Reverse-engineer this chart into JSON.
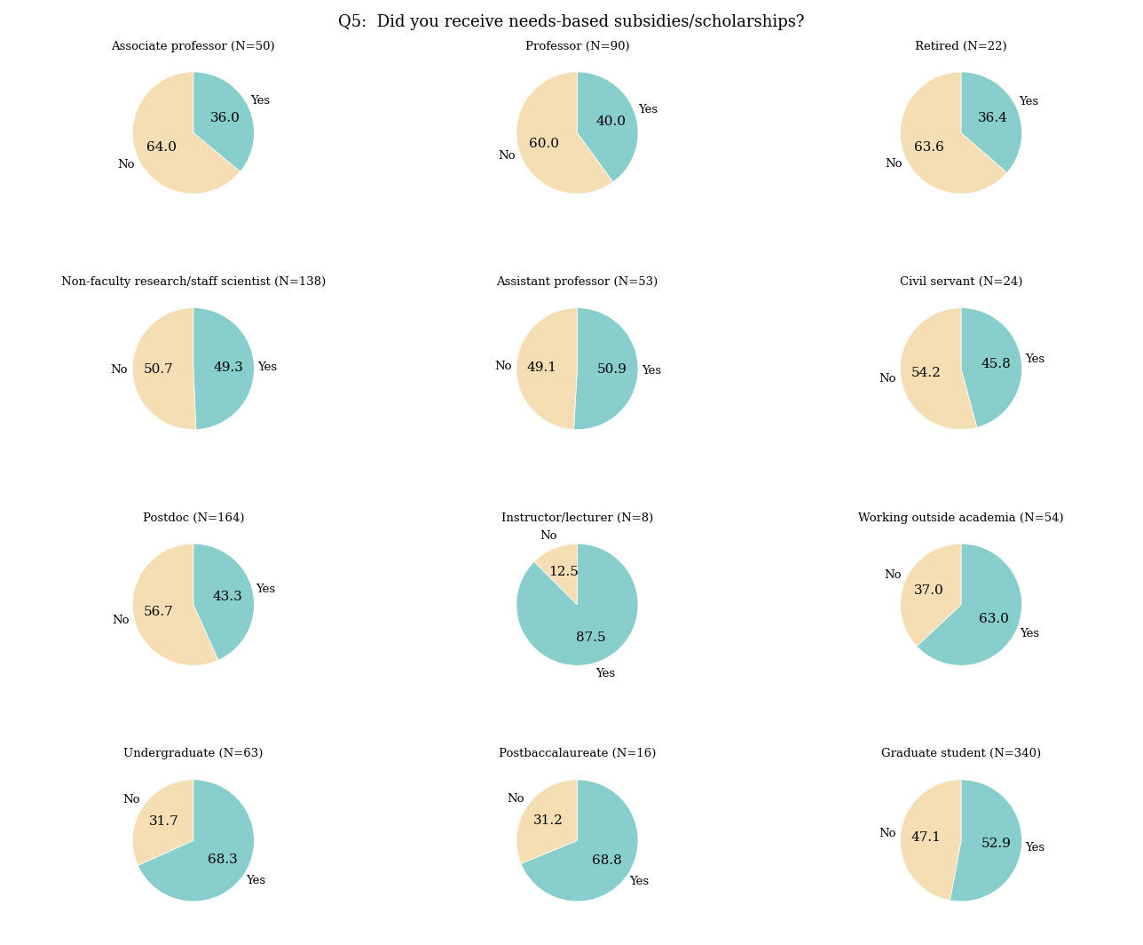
{
  "title": "Q5:  Did you receive needs-based subsidies/scholarships?",
  "yes_color": "#87CECC",
  "no_color": "#F5DEB3",
  "charts": [
    {
      "title": "Associate professor (N=50)",
      "yes": 36.0,
      "no": 64.0
    },
    {
      "title": "Professor (N=90)",
      "yes": 40.0,
      "no": 60.0
    },
    {
      "title": "Retired (N=22)",
      "yes": 36.4,
      "no": 63.6
    },
    {
      "title": "Non-faculty research/staff scientist (N=138)",
      "yes": 49.3,
      "no": 50.7
    },
    {
      "title": "Assistant professor (N=53)",
      "yes": 50.9,
      "no": 49.1
    },
    {
      "title": "Civil servant (N=24)",
      "yes": 45.8,
      "no": 54.2
    },
    {
      "title": "Postdoc (N=164)",
      "yes": 43.3,
      "no": 56.7
    },
    {
      "title": "Instructor/lecturer (N=8)",
      "yes": 87.5,
      "no": 12.5
    },
    {
      "title": "Working outside academia (N=54)",
      "yes": 63.0,
      "no": 37.0
    },
    {
      "title": "Undergraduate (N=63)",
      "yes": 68.3,
      "no": 31.7
    },
    {
      "title": "Postbaccalaureate (N=16)",
      "yes": 68.8,
      "no": 31.2
    },
    {
      "title": "Graduate student (N=340)",
      "yes": 52.9,
      "no": 47.1
    }
  ],
  "title_fontsize": 13,
  "label_fontsize": 9.5,
  "value_fontsize": 11,
  "startangle": 90
}
